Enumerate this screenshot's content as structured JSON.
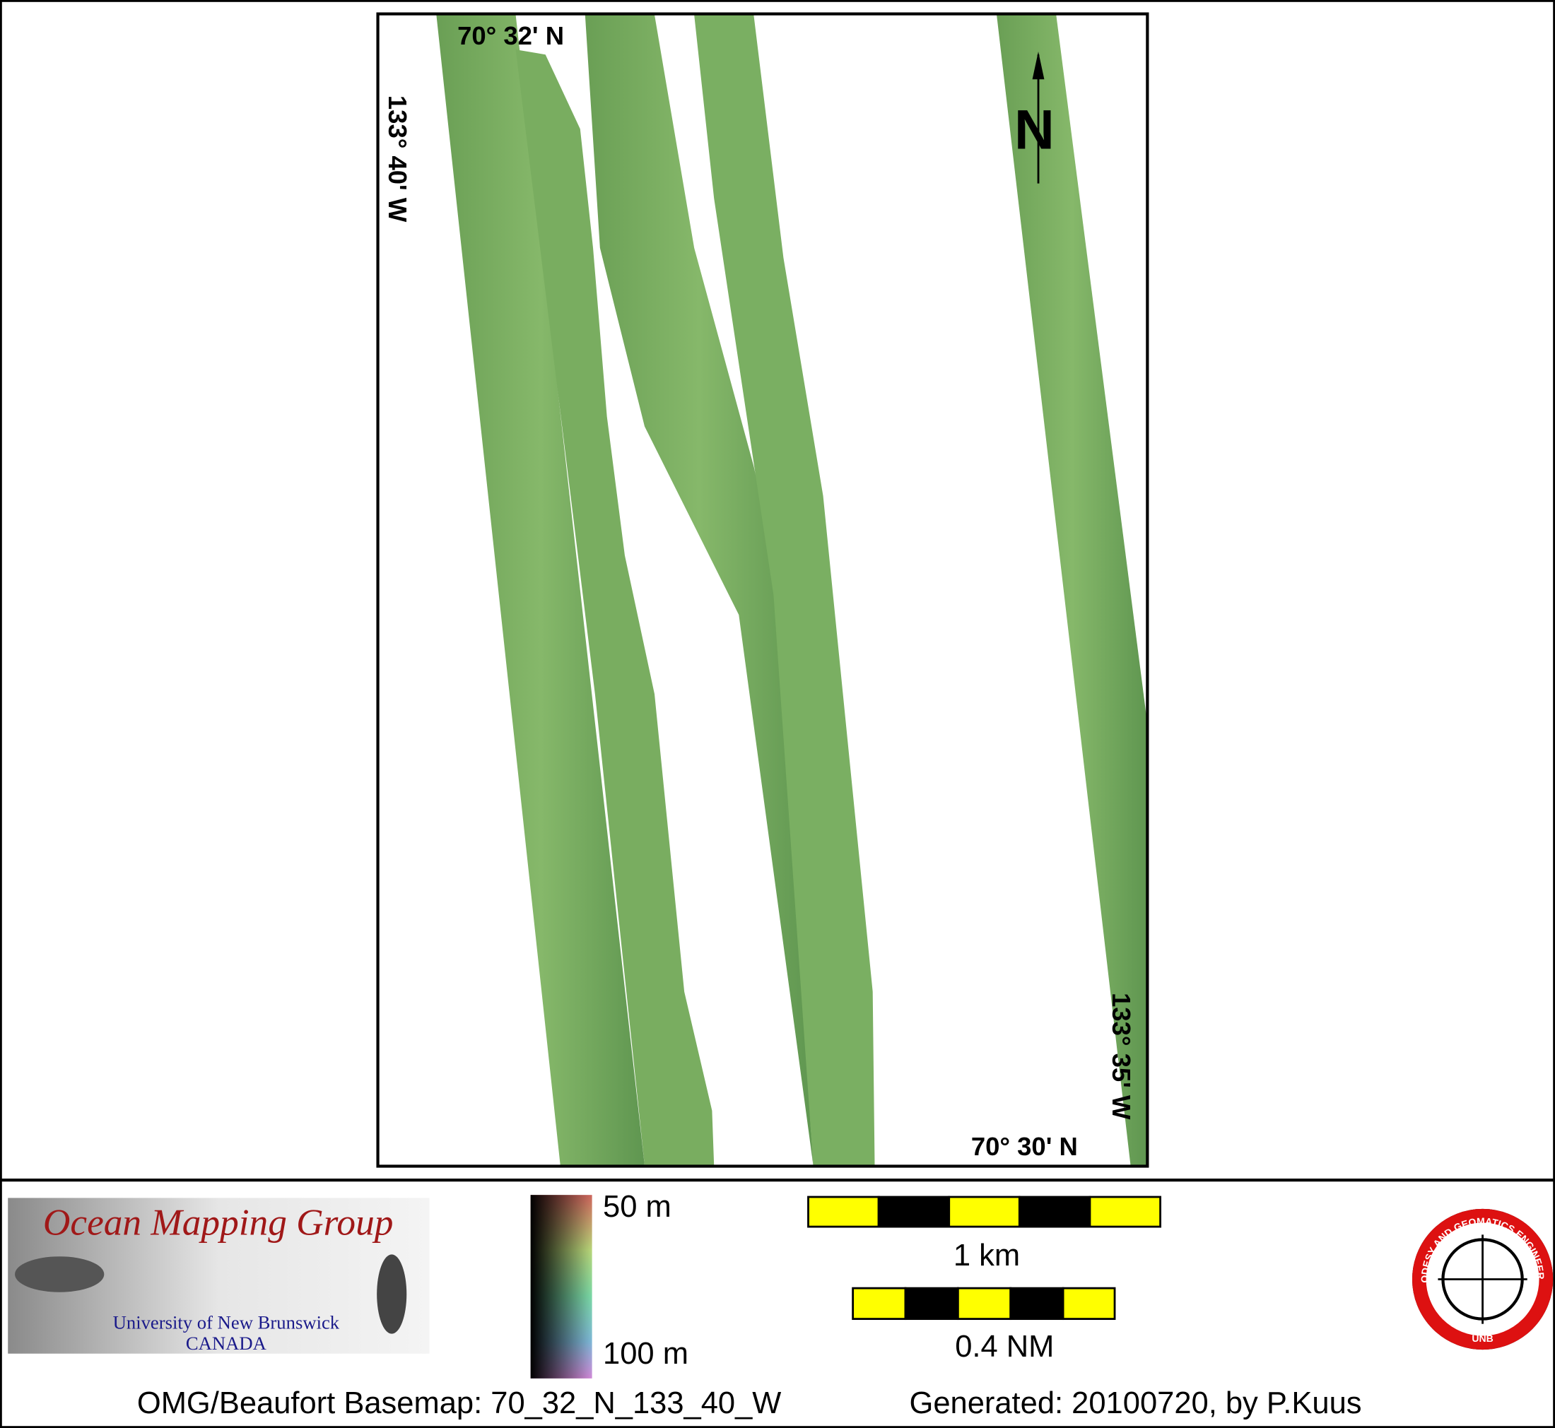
{
  "map": {
    "labels": {
      "top_left_lat": "70° 32' N",
      "left_lon": "133° 40' W",
      "right_lon": "133° 35' W",
      "bottom_right_lat": "70° 30' N",
      "north": "N"
    },
    "logo_omg": {
      "title": "Ocean Mapping Group",
      "university": "University of New Brunswick",
      "country": "CANADA"
    },
    "colorbar": {
      "top_label": "50 m",
      "bottom_label": "100 m"
    },
    "scale_bars": [
      "1 km",
      "0.4 NM"
    ],
    "logo_gge": {
      "ring_text": "GEODESY AND GEOMATICS ENGINEERING",
      "center_text": "UNB"
    },
    "footer": {
      "basemap": "OMG/Beaufort Basemap: 70_32_N_133_40_W",
      "generated": "Generated: 20100720, by P.Kuus"
    }
  }
}
